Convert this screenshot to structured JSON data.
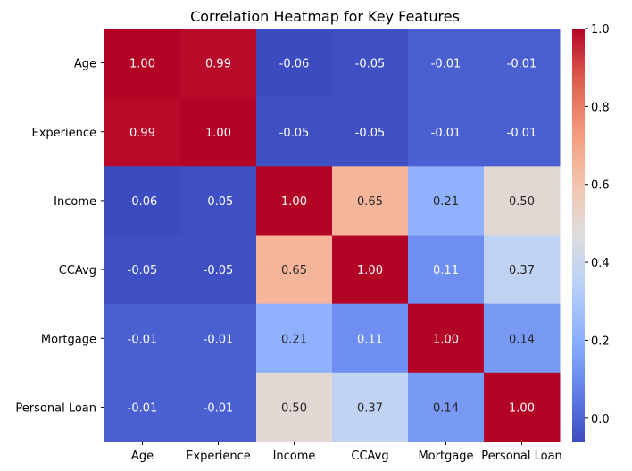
{
  "chart_data": {
    "type": "heatmap",
    "title": "Correlation Heatmap for Key Features",
    "xlabel": "",
    "ylabel": "",
    "x_categories": [
      "Age",
      "Experience",
      "Income",
      "CCAvg",
      "Mortgage",
      "Personal Loan"
    ],
    "y_categories": [
      "Age",
      "Experience",
      "Income",
      "CCAvg",
      "Mortgage",
      "Personal Loan"
    ],
    "values": [
      [
        1.0,
        0.99,
        -0.06,
        -0.05,
        -0.01,
        -0.01
      ],
      [
        0.99,
        1.0,
        -0.05,
        -0.05,
        -0.01,
        -0.01
      ],
      [
        -0.06,
        -0.05,
        1.0,
        0.65,
        0.21,
        0.5
      ],
      [
        -0.05,
        -0.05,
        0.65,
        1.0,
        0.11,
        0.37
      ],
      [
        -0.01,
        -0.01,
        0.21,
        0.11,
        1.0,
        0.14
      ],
      [
        -0.01,
        -0.01,
        0.5,
        0.37,
        0.14,
        1.0
      ]
    ],
    "value_format": "0.00",
    "colormap": "coolwarm",
    "color_range": [
      -0.06,
      1.0
    ],
    "colorbar": {
      "ticks": [
        0.0,
        0.2,
        0.4,
        0.6,
        0.8,
        1.0
      ],
      "tick_labels": [
        "0.0",
        "0.2",
        "0.4",
        "0.6",
        "0.8",
        "1.0"
      ]
    },
    "grid": false
  }
}
